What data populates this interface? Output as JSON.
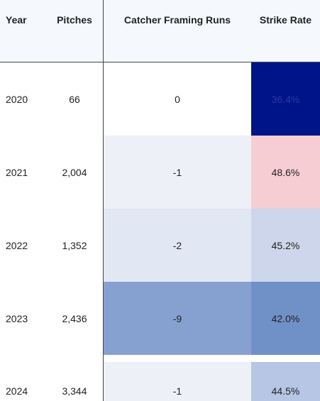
{
  "headers": {
    "year": "Year",
    "pitches": "Pitches",
    "cfr": "Catcher Framing Runs",
    "strike_rate": "Strike Rate"
  },
  "rows": [
    {
      "year": "2020",
      "pitches": "66",
      "cfr": "0",
      "strike_rate": "36.4%",
      "cfr_bg": "#ffffff",
      "sr_bg": "#00148a",
      "sr_fg": "#2a3a9e"
    },
    {
      "year": "2021",
      "pitches": "2,004",
      "cfr": "-1",
      "strike_rate": "48.6%",
      "cfr_bg": "#eef0f8",
      "sr_bg": "#f6cdd2",
      "sr_fg": "#222222"
    },
    {
      "year": "2022",
      "pitches": "1,352",
      "cfr": "-2",
      "strike_rate": "45.2%",
      "cfr_bg": "#e1e7f3",
      "sr_bg": "#cdd6ea",
      "sr_fg": "#222222"
    },
    {
      "year": "2023",
      "pitches": "2,436",
      "cfr": "-9",
      "strike_rate": "42.0%",
      "cfr_bg": "#86a1d0",
      "sr_bg": "#7090c8",
      "sr_fg": "#222222"
    },
    {
      "year": "2024",
      "pitches": "3,344",
      "cfr": "-1",
      "strike_rate": "44.5%",
      "cfr_bg": "#eef0f8",
      "sr_bg": "#b6c6e4",
      "sr_fg": "#222222"
    }
  ]
}
